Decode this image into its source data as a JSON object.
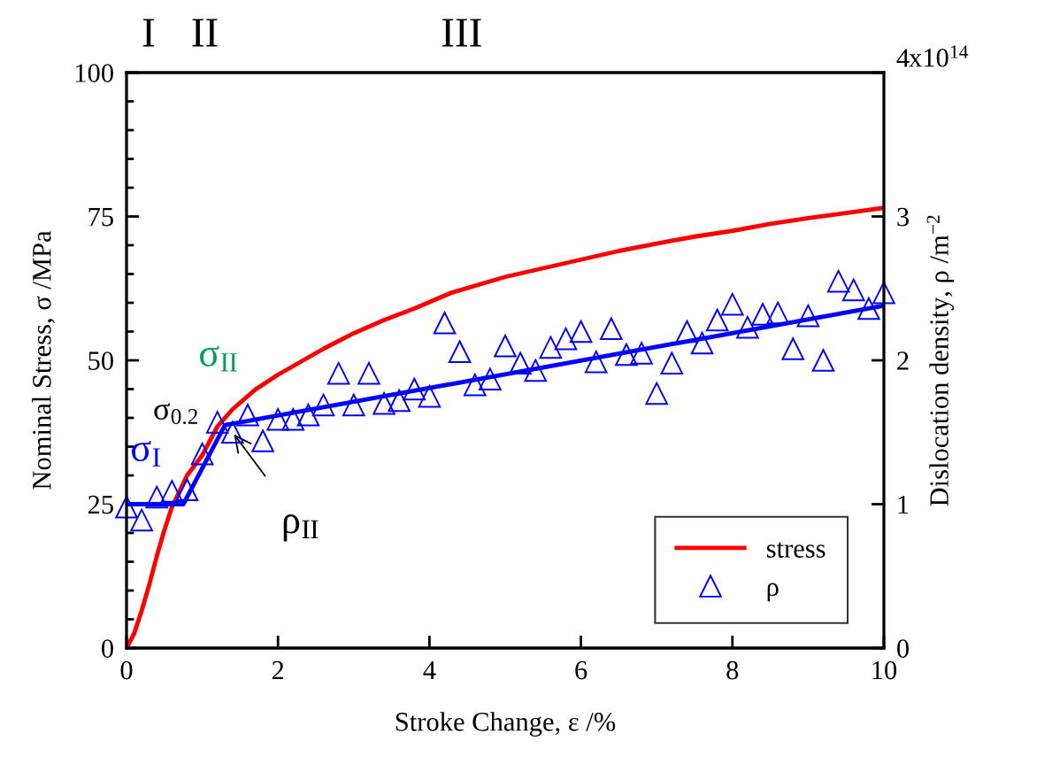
{
  "chart_data": {
    "type": "line",
    "xlabel": "Stroke Change, ε /%",
    "ylabel": "Nominal Stress, σ /MPa",
    "y2label": "Dislocation density, ρ /m$^{−2}$",
    "xlim": [
      0,
      10
    ],
    "xticks": [
      0,
      2,
      4,
      6,
      8,
      10
    ],
    "ylim": [
      0,
      100
    ],
    "yticks": [
      0,
      {
        "value": 5,
        "label": null
      },
      {
        "value": 10,
        "label": null
      },
      {
        "value": 15,
        "label": null
      },
      {
        "value": 20,
        "label": null
      },
      25,
      {
        "value": 30,
        "label": null
      },
      {
        "value": 35,
        "label": null
      },
      {
        "value": 40,
        "label": null
      },
      {
        "value": 45,
        "label": null
      },
      50,
      {
        "value": 55,
        "label": null
      },
      {
        "value": 60,
        "label": null
      },
      {
        "value": 65,
        "label": null
      },
      {
        "value": 70,
        "label": null
      },
      75,
      {
        "value": 80,
        "label": null
      },
      {
        "value": 85,
        "label": null
      },
      {
        "value": 90,
        "label": null
      },
      {
        "value": 95,
        "label": null
      },
      100
    ],
    "y2lim": [
      0,
      4
    ],
    "y2ticks": [
      0,
      1,
      2,
      3,
      4
    ],
    "grid": false,
    "legend": "bottom right",
    "series": [
      {
        "name": "stress",
        "color": "#ff0000",
        "x": [
          0,
          0.1,
          0.2,
          0.3,
          0.4,
          0.5,
          0.6,
          0.8,
          1.0,
          1.2,
          1.4,
          1.7,
          2.0,
          2.2,
          2.6,
          3.0,
          3.4,
          3.8,
          4.3,
          5.0,
          5.5,
          6.0,
          6.5,
          7.0,
          7.5,
          8.0,
          8.5,
          9.0,
          9.5,
          10.0
        ],
        "values": [
          0,
          2.5,
          6.5,
          11,
          16,
          20.5,
          24.5,
          30,
          33.5,
          38.5,
          41.5,
          44.9,
          47.5,
          49,
          52,
          54.7,
          57,
          59,
          61.8,
          64.5,
          66,
          67.5,
          69,
          70.3,
          71.5,
          72.5,
          73.7,
          74.7,
          75.6,
          76.5
        ]
      },
      {
        "name": "ρ",
        "type": "scatter",
        "axis": "y2",
        "marker": "triangle",
        "color": "#0000ff",
        "x": [
          0,
          0.2,
          0.4,
          0.6,
          0.8,
          1.0,
          1.2,
          1.4,
          1.6,
          1.8,
          2.0,
          2.2,
          2.4,
          2.6,
          2.8,
          3.0,
          3.2,
          3.4,
          3.6,
          3.8,
          4.0,
          4.2,
          4.4,
          4.6,
          4.8,
          5.0,
          5.2,
          5.4,
          5.6,
          5.8,
          6.0,
          6.2,
          6.4,
          6.6,
          6.8,
          7.0,
          7.2,
          7.4,
          7.6,
          7.8,
          8.0,
          8.2,
          8.4,
          8.6,
          8.8,
          9.0,
          9.2,
          9.4,
          9.6,
          9.8,
          10.0
        ],
        "values": [
          0.98,
          0.89,
          1.05,
          1.09,
          1.1,
          1.35,
          1.57,
          1.5,
          1.62,
          1.44,
          1.59,
          1.59,
          1.62,
          1.69,
          1.91,
          1.69,
          1.91,
          1.7,
          1.72,
          1.8,
          1.75,
          2.26,
          2.06,
          1.83,
          1.87,
          2.1,
          1.98,
          1.93,
          2.09,
          2.15,
          2.2,
          1.99,
          2.22,
          2.04,
          2.05,
          1.77,
          1.98,
          2.2,
          2.12,
          2.28,
          2.39,
          2.23,
          2.32,
          2.33,
          2.08,
          2.31,
          2.0,
          2.55,
          2.49,
          2.36,
          2.47
        ]
      },
      {
        "type": "line",
        "axis": "y2",
        "color": "#0000ff",
        "x": [
          0,
          0.75,
          1.3,
          10
        ],
        "values": [
          1.0,
          1.0,
          1.55,
          2.38
        ]
      }
    ],
    "annotations": [
      "I",
      "II",
      "III",
      "σ$_{II}$",
      "σ$_{0.2}$",
      "σ$_{I}$",
      {
        "text": "ρ$_{II}$",
        "x": 1.4,
        "y": 37.5
      },
      "x10$^{14}$"
    ]
  }
}
